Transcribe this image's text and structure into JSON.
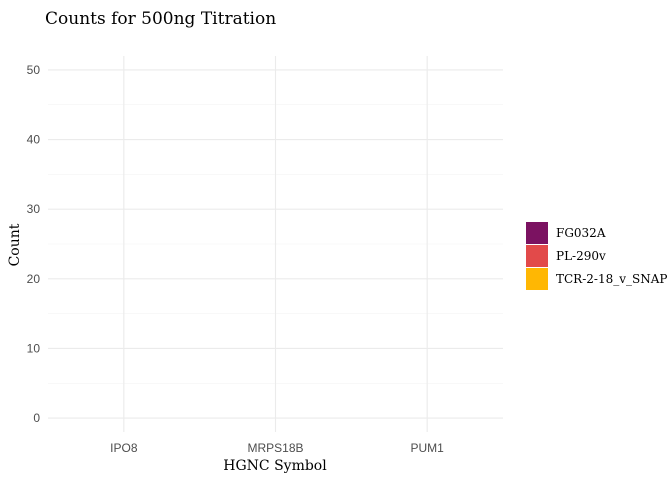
{
  "chart_data": {
    "type": "bar",
    "title": "Counts for 500ng Titration",
    "xlabel": "HGNC Symbol",
    "ylabel": "Count",
    "categories": [
      "IPO8",
      "MRPS18B",
      "PUM1"
    ],
    "ylim": [
      -2,
      52
    ],
    "yticks": [
      0,
      10,
      20,
      30,
      40,
      50
    ],
    "grid": true,
    "legend_position": "right",
    "series": [
      {
        "name": "FG032A",
        "color": "#7b1261",
        "values": [
          null,
          null,
          null
        ]
      },
      {
        "name": "PL-290v",
        "color": "#e24a4a",
        "values": [
          null,
          null,
          null
        ]
      },
      {
        "name": "TCR-2-18_v_SNAP",
        "color": "#ffb703",
        "values": [
          null,
          null,
          null
        ]
      }
    ]
  }
}
